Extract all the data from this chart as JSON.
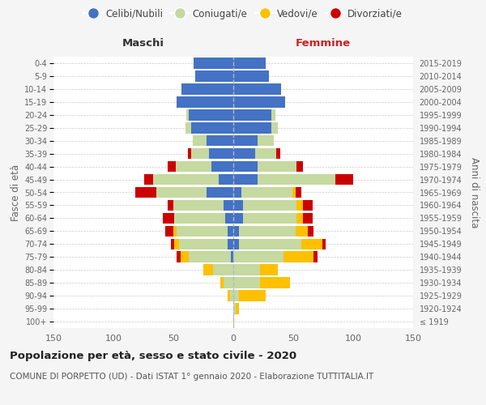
{
  "age_groups": [
    "100+",
    "95-99",
    "90-94",
    "85-89",
    "80-84",
    "75-79",
    "70-74",
    "65-69",
    "60-64",
    "55-59",
    "50-54",
    "45-49",
    "40-44",
    "35-39",
    "30-34",
    "25-29",
    "20-24",
    "15-19",
    "10-14",
    "5-9",
    "0-4"
  ],
  "birth_years": [
    "≤ 1919",
    "1920-1924",
    "1925-1929",
    "1930-1934",
    "1935-1939",
    "1940-1944",
    "1945-1949",
    "1950-1954",
    "1955-1959",
    "1960-1964",
    "1965-1969",
    "1970-1974",
    "1975-1979",
    "1980-1984",
    "1985-1989",
    "1990-1994",
    "1995-1999",
    "2000-2004",
    "2005-2009",
    "2010-2014",
    "2015-2019"
  ],
  "male_celibi": [
    0,
    0,
    0,
    0,
    0,
    2,
    5,
    5,
    7,
    8,
    22,
    12,
    18,
    20,
    22,
    35,
    37,
    47,
    43,
    32,
    33
  ],
  "male_coniugati": [
    0,
    0,
    3,
    8,
    17,
    35,
    40,
    42,
    42,
    42,
    42,
    55,
    30,
    15,
    12,
    5,
    2,
    0,
    0,
    0,
    0
  ],
  "male_vedovi": [
    0,
    0,
    2,
    3,
    8,
    7,
    4,
    3,
    0,
    0,
    0,
    0,
    0,
    0,
    0,
    0,
    0,
    0,
    0,
    0,
    0
  ],
  "male_divorziati": [
    0,
    0,
    0,
    0,
    0,
    3,
    3,
    7,
    10,
    5,
    18,
    7,
    7,
    3,
    0,
    0,
    0,
    0,
    0,
    0,
    0
  ],
  "female_celibi": [
    0,
    0,
    0,
    0,
    0,
    0,
    5,
    5,
    8,
    8,
    7,
    20,
    20,
    18,
    20,
    32,
    32,
    43,
    40,
    30,
    27
  ],
  "female_coniugati": [
    0,
    2,
    5,
    22,
    22,
    42,
    52,
    47,
    45,
    45,
    42,
    65,
    33,
    18,
    14,
    5,
    3,
    0,
    0,
    0,
    0
  ],
  "female_vedovi": [
    1,
    3,
    22,
    25,
    15,
    25,
    17,
    10,
    5,
    5,
    3,
    0,
    0,
    0,
    0,
    0,
    0,
    0,
    0,
    0,
    0
  ],
  "female_divorziati": [
    0,
    0,
    0,
    0,
    0,
    3,
    3,
    5,
    8,
    8,
    5,
    15,
    5,
    3,
    0,
    0,
    0,
    0,
    0,
    0,
    0
  ],
  "colors": {
    "celibi": "#4472c4",
    "coniugati": "#c5d9a0",
    "vedovi": "#ffc000",
    "divorziati": "#cc0000"
  },
  "legend_labels": [
    "Celibi/Nubili",
    "Coniugati/e",
    "Vedovi/e",
    "Divorziati/e"
  ],
  "title1": "Popolazione per età, sesso e stato civile - 2020",
  "title2": "COMUNE DI PORPETTO (UD) - Dati ISTAT 1° gennaio 2020 - Elaborazione TUTTITALIA.IT",
  "ylabel_left": "Fasce di età",
  "ylabel_right": "Anni di nascita",
  "maschi_label": "Maschi",
  "femmine_label": "Femmine",
  "xlim": 150,
  "background_color": "#f5f5f5",
  "plot_bg": "#ffffff"
}
